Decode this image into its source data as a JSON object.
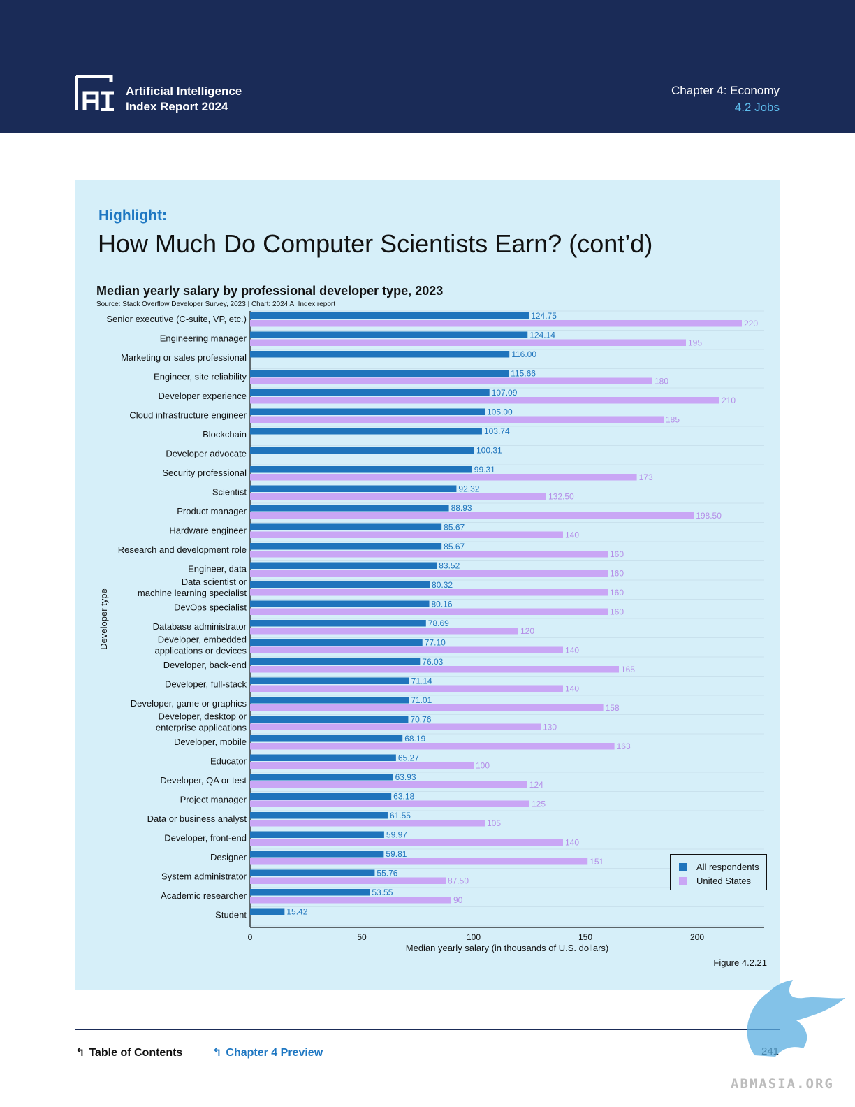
{
  "header": {
    "brand_line1": "Artificial Intelligence",
    "brand_line2": "Index Report 2024",
    "chapter": "Chapter 4: Economy",
    "section": "4.2 Jobs",
    "logo_text": "AI"
  },
  "highlight": {
    "label": "Highlight:",
    "headline": "How Much Do Computer Scientists Earn? (cont’d)"
  },
  "chart_data": {
    "type": "bar",
    "orientation": "horizontal",
    "title": "Median yearly salary by professional developer type, 2023",
    "source": "Source: Stack Overflow Developer Survey, 2023 | Chart: 2024 AI Index report",
    "xlabel": "Median yearly salary (in thousands of U.S. dollars)",
    "ylabel": "Developer type",
    "xlim": [
      0,
      230
    ],
    "xticks": [
      0,
      50,
      100,
      150,
      200
    ],
    "grid": true,
    "legend_position": "bottom-right",
    "categories": [
      "Senior executive (C-suite, VP, etc.)",
      "Engineering manager",
      "Marketing or sales professional",
      "Engineer, site reliability",
      "Developer experience",
      "Cloud infrastructure engineer",
      "Blockchain",
      "Developer advocate",
      "Security professional",
      "Scientist",
      "Product manager",
      "Hardware engineer",
      "Research and development role",
      "Engineer, data",
      "Data scientist or machine learning specialist",
      "DevOps specialist",
      "Database administrator",
      "Developer, embedded applications or devices",
      "Developer, back-end",
      "Developer, full-stack",
      "Developer, game or graphics",
      "Developer, desktop or enterprise applications",
      "Developer, mobile",
      "Educator",
      "Developer, QA or test",
      "Project manager",
      "Data or business analyst",
      "Developer, front-end",
      "Designer",
      "System administrator",
      "Academic researcher",
      "Student"
    ],
    "category_lines": [
      [
        "Senior executive (C-suite, VP, etc.)"
      ],
      [
        "Engineering manager"
      ],
      [
        "Marketing or sales professional"
      ],
      [
        "Engineer, site reliability"
      ],
      [
        "Developer experience"
      ],
      [
        "Cloud infrastructure engineer"
      ],
      [
        "Blockchain"
      ],
      [
        "Developer advocate"
      ],
      [
        "Security professional"
      ],
      [
        "Scientist"
      ],
      [
        "Product manager"
      ],
      [
        "Hardware engineer"
      ],
      [
        "Research and development role"
      ],
      [
        "Engineer, data"
      ],
      [
        "Data scientist or",
        "machine learning specialist"
      ],
      [
        "DevOps specialist"
      ],
      [
        "Database administrator"
      ],
      [
        "Developer, embedded",
        "applications or devices"
      ],
      [
        "Developer, back-end"
      ],
      [
        "Developer, full-stack"
      ],
      [
        "Developer, game or graphics"
      ],
      [
        "Developer, desktop or",
        "enterprise applications"
      ],
      [
        "Developer, mobile"
      ],
      [
        "Educator"
      ],
      [
        "Developer, QA or test"
      ],
      [
        "Project manager"
      ],
      [
        "Data or business analyst"
      ],
      [
        "Developer, front-end"
      ],
      [
        "Designer"
      ],
      [
        "System administrator"
      ],
      [
        "Academic researcher"
      ],
      [
        "Student"
      ]
    ],
    "series": [
      {
        "name": "All respondents",
        "color": "#1f74bc",
        "label_color": "#1f74bc",
        "values": [
          124.75,
          124.14,
          116.0,
          115.66,
          107.09,
          105.0,
          103.74,
          100.31,
          99.31,
          92.32,
          88.93,
          85.67,
          85.67,
          83.52,
          80.32,
          80.16,
          78.69,
          77.1,
          76.03,
          71.14,
          71.01,
          70.76,
          68.19,
          65.27,
          63.93,
          63.18,
          61.55,
          59.97,
          59.81,
          55.76,
          53.55,
          15.42
        ],
        "labels": [
          "124.75",
          "124.14",
          "116.00",
          "115.66",
          "107.09",
          "105.00",
          "103.74",
          "100.31",
          "99.31",
          "92.32",
          "88.93",
          "85.67",
          "85.67",
          "83.52",
          "80.32",
          "80.16",
          "78.69",
          "77.10",
          "76.03",
          "71.14",
          "71.01",
          "70.76",
          "68.19",
          "65.27",
          "63.93",
          "63.18",
          "61.55",
          "59.97",
          "59.81",
          "55.76",
          "53.55",
          "15.42"
        ]
      },
      {
        "name": "United States",
        "color": "#c9a6f5",
        "label_color": "#b58ee8",
        "values": [
          220,
          195,
          null,
          180,
          210,
          185,
          null,
          null,
          173,
          132.5,
          198.5,
          140,
          160,
          160,
          160,
          160,
          120,
          140,
          165,
          140,
          158,
          130,
          163,
          100,
          124,
          125,
          105,
          140,
          151,
          87.5,
          90,
          null
        ],
        "labels": [
          "220",
          "195",
          "",
          "180",
          "210",
          "185",
          "",
          "",
          "173",
          "132.50",
          "198.50",
          "140",
          "160",
          "160",
          "160",
          "160",
          "120",
          "140",
          "165",
          "140",
          "158",
          "130",
          "163",
          "100",
          "124",
          "125",
          "105",
          "140",
          "151",
          "87.50",
          "90",
          ""
        ]
      }
    ]
  },
  "figure_label": "Figure 4.2.21",
  "footer": {
    "toc": "Table of Contents",
    "preview": "Chapter 4 Preview",
    "page": "241"
  },
  "watermark_text": "ABMASIA.ORG"
}
